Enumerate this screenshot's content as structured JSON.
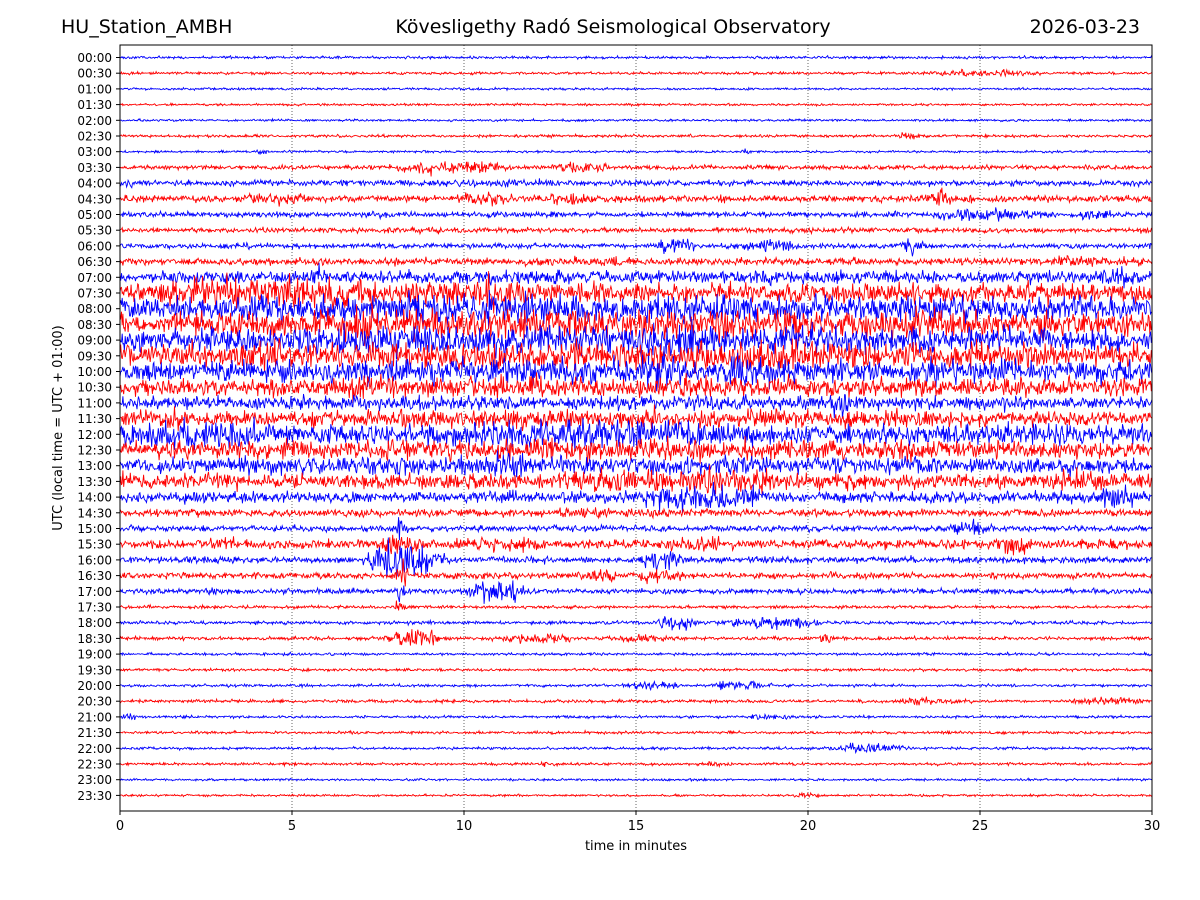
{
  "header": {
    "station": "HU_Station_AMBH",
    "title": "Kövesligethy Radó Seismological Observatory",
    "date": "2026-03-23"
  },
  "chart_data": {
    "type": "line",
    "title": "Kövesligethy Radó Seismological Observatory",
    "xlabel": "time in minutes",
    "ylabel": "UTC (local time = UTC + 01:00)",
    "xlim": [
      0,
      30
    ],
    "xticks": [
      0,
      5,
      10,
      15,
      20,
      25,
      30
    ],
    "vertical_gridlines": [
      5,
      10,
      15,
      20,
      25
    ],
    "grid": "dotted vertical",
    "colors": [
      "#0000ff",
      "#ff0000"
    ],
    "note": "Helicorder: one 30-minute trace per row, alternating blue/red; values are relative noise amplitude (0 = quiet, 10 = saturated), with event bursts at [start_min, end_min, peak_amplitude].",
    "rows": [
      {
        "label": "00:00",
        "amp": 0.6,
        "events": []
      },
      {
        "label": "00:30",
        "amp": 0.6,
        "events": [
          [
            23.3,
            27.0,
            2.0
          ]
        ]
      },
      {
        "label": "01:00",
        "amp": 0.5,
        "events": []
      },
      {
        "label": "01:30",
        "amp": 0.5,
        "events": []
      },
      {
        "label": "02:00",
        "amp": 0.5,
        "events": []
      },
      {
        "label": "02:30",
        "amp": 0.6,
        "events": [
          [
            22.5,
            23.5,
            1.5
          ]
        ]
      },
      {
        "label": "03:00",
        "amp": 0.5,
        "events": [
          [
            3.9,
            4.3,
            2.0
          ],
          [
            18.0,
            18.4,
            1.6
          ]
        ]
      },
      {
        "label": "03:30",
        "amp": 1.0,
        "events": [
          [
            7.5,
            11.5,
            3.8
          ],
          [
            12.5,
            14.3,
            3.6
          ]
        ]
      },
      {
        "label": "04:00",
        "amp": 1.3,
        "events": [
          [
            0.0,
            0.5,
            2.4
          ],
          [
            9.0,
            13.0,
            2.0
          ]
        ]
      },
      {
        "label": "04:30",
        "amp": 1.5,
        "events": [
          [
            3.5,
            5.5,
            3.5
          ],
          [
            9.5,
            11.5,
            4.0
          ],
          [
            12.5,
            13.8,
            3.0
          ],
          [
            23.4,
            24.2,
            5.5
          ]
        ]
      },
      {
        "label": "05:00",
        "amp": 1.2,
        "events": [
          [
            7.0,
            8.5,
            1.8
          ],
          [
            23.5,
            27.0,
            4.0
          ],
          [
            27.5,
            29.0,
            2.5
          ]
        ]
      },
      {
        "label": "05:30",
        "amp": 1.1,
        "events": [
          [
            8.0,
            9.5,
            1.8
          ]
        ]
      },
      {
        "label": "06:00",
        "amp": 1.1,
        "events": [
          [
            3.5,
            3.9,
            2.0
          ],
          [
            15.5,
            16.8,
            4.5
          ],
          [
            17.5,
            20.0,
            3.2
          ],
          [
            22.5,
            23.5,
            4.5
          ]
        ]
      },
      {
        "label": "06:30",
        "amp": 1.6,
        "events": [
          [
            12.0,
            16.0,
            2.4
          ],
          [
            26.5,
            30.0,
            2.6
          ]
        ]
      },
      {
        "label": "07:00",
        "amp": 2.4,
        "events": [
          [
            0.0,
            30.0,
            3.5
          ],
          [
            5.5,
            6.2,
            6.0
          ],
          [
            28.0,
            30.0,
            5.0
          ]
        ]
      },
      {
        "label": "07:30",
        "amp": 4.5,
        "events": [
          [
            0.0,
            12.0,
            7.5
          ],
          [
            5.5,
            6.5,
            10.0
          ],
          [
            10.0,
            12.0,
            9.0
          ]
        ]
      },
      {
        "label": "08:00",
        "amp": 5.0,
        "events": [
          [
            0.0,
            30.0,
            7.0
          ],
          [
            3.5,
            5.5,
            9.5
          ]
        ]
      },
      {
        "label": "08:30",
        "amp": 5.0,
        "events": [
          [
            0.0,
            30.0,
            7.5
          ],
          [
            6.0,
            8.5,
            10.0
          ],
          [
            14.0,
            16.0,
            10.0
          ]
        ]
      },
      {
        "label": "09:00",
        "amp": 5.0,
        "events": [
          [
            0.0,
            30.0,
            7.0
          ],
          [
            13.0,
            18.0,
            10.0
          ]
        ]
      },
      {
        "label": "09:30",
        "amp": 5.0,
        "events": [
          [
            0.0,
            30.0,
            6.5
          ],
          [
            3.5,
            5.0,
            9.5
          ],
          [
            18.0,
            21.0,
            9.0
          ]
        ]
      },
      {
        "label": "10:00",
        "amp": 4.5,
        "events": [
          [
            0.0,
            30.0,
            6.0
          ],
          [
            15.0,
            16.5,
            9.0
          ],
          [
            17.0,
            19.5,
            8.5
          ]
        ]
      },
      {
        "label": "10:30",
        "amp": 3.6,
        "events": [
          [
            0.0,
            30.0,
            5.0
          ],
          [
            6.5,
            7.5,
            7.0
          ]
        ]
      },
      {
        "label": "11:00",
        "amp": 2.6,
        "events": [
          [
            0.0,
            30.0,
            3.6
          ],
          [
            20.5,
            21.5,
            6.5
          ]
        ]
      },
      {
        "label": "11:30",
        "amp": 3.0,
        "events": [
          [
            0.0,
            30.0,
            4.2
          ],
          [
            1.3,
            1.8,
            7.0
          ],
          [
            15.0,
            16.0,
            6.0
          ]
        ]
      },
      {
        "label": "12:00",
        "amp": 4.5,
        "events": [
          [
            0.0,
            4.5,
            8.5
          ],
          [
            8.0,
            19.0,
            7.0
          ]
        ]
      },
      {
        "label": "12:30",
        "amp": 3.6,
        "events": [
          [
            0.0,
            30.0,
            5.0
          ]
        ]
      },
      {
        "label": "13:00",
        "amp": 3.2,
        "events": [
          [
            0.0,
            30.0,
            4.4
          ],
          [
            10.5,
            12.0,
            7.5
          ]
        ]
      },
      {
        "label": "13:30",
        "amp": 3.4,
        "events": [
          [
            12.0,
            20.0,
            6.5
          ],
          [
            27.0,
            29.0,
            5.5
          ]
        ]
      },
      {
        "label": "14:00",
        "amp": 2.6,
        "events": [
          [
            15.0,
            19.0,
            8.0
          ],
          [
            28.5,
            29.5,
            7.0
          ]
        ]
      },
      {
        "label": "14:30",
        "amp": 1.6,
        "events": [
          [
            12.5,
            14.5,
            3.0
          ],
          [
            15.0,
            16.0,
            2.6
          ]
        ]
      },
      {
        "label": "15:00",
        "amp": 1.3,
        "events": [
          [
            8.0,
            8.4,
            8.0
          ],
          [
            24.0,
            25.5,
            4.5
          ]
        ]
      },
      {
        "label": "15:30",
        "amp": 2.0,
        "events": [
          [
            2.5,
            3.5,
            3.5
          ],
          [
            7.5,
            9.0,
            6.0
          ],
          [
            9.5,
            12.5,
            3.6
          ],
          [
            15.5,
            18.0,
            4.0
          ],
          [
            25.5,
            26.5,
            6.5
          ]
        ]
      },
      {
        "label": "16:00",
        "amp": 1.5,
        "events": [
          [
            7.0,
            9.5,
            10.0
          ],
          [
            15.0,
            16.5,
            4.5
          ]
        ]
      },
      {
        "label": "16:30",
        "amp": 1.4,
        "events": [
          [
            8.0,
            8.4,
            10.0
          ],
          [
            13.5,
            14.5,
            4.5
          ],
          [
            15.0,
            16.5,
            4.0
          ]
        ]
      },
      {
        "label": "17:00",
        "amp": 1.2,
        "events": [
          [
            8.0,
            8.3,
            10.0
          ],
          [
            10.0,
            12.0,
            6.0
          ],
          [
            2.5,
            3.0,
            2.5
          ]
        ]
      },
      {
        "label": "17:30",
        "amp": 0.7,
        "events": [
          [
            8.0,
            8.3,
            5.0
          ]
        ]
      },
      {
        "label": "18:00",
        "amp": 0.8,
        "events": [
          [
            15.5,
            16.8,
            4.5
          ],
          [
            17.5,
            20.5,
            3.5
          ]
        ]
      },
      {
        "label": "18:30",
        "amp": 0.8,
        "events": [
          [
            7.5,
            9.5,
            5.5
          ],
          [
            11.0,
            13.5,
            3.0
          ],
          [
            14.5,
            16.0,
            2.2
          ],
          [
            20.3,
            20.8,
            3.5
          ]
        ]
      },
      {
        "label": "19:00",
        "amp": 0.6,
        "events": []
      },
      {
        "label": "19:30",
        "amp": 0.6,
        "events": []
      },
      {
        "label": "20:00",
        "amp": 0.6,
        "events": [
          [
            14.5,
            16.5,
            2.4
          ],
          [
            17.0,
            19.0,
            3.0
          ]
        ]
      },
      {
        "label": "20:30",
        "amp": 0.7,
        "events": [
          [
            22.5,
            24.5,
            2.2
          ],
          [
            27.5,
            30.0,
            2.5
          ]
        ]
      },
      {
        "label": "21:00",
        "amp": 0.6,
        "events": [
          [
            0.0,
            0.5,
            2.0
          ],
          [
            18.0,
            20.0,
            1.6
          ]
        ]
      },
      {
        "label": "21:30",
        "amp": 0.6,
        "events": []
      },
      {
        "label": "22:00",
        "amp": 0.6,
        "events": [
          [
            20.5,
            23.0,
            3.0
          ]
        ]
      },
      {
        "label": "22:30",
        "amp": 0.6,
        "events": [
          [
            12.0,
            12.8,
            1.5
          ],
          [
            17.0,
            17.8,
            1.5
          ]
        ]
      },
      {
        "label": "23:00",
        "amp": 0.5,
        "events": []
      },
      {
        "label": "23:30",
        "amp": 0.5,
        "events": [
          [
            19.5,
            20.5,
            1.6
          ]
        ]
      }
    ]
  }
}
